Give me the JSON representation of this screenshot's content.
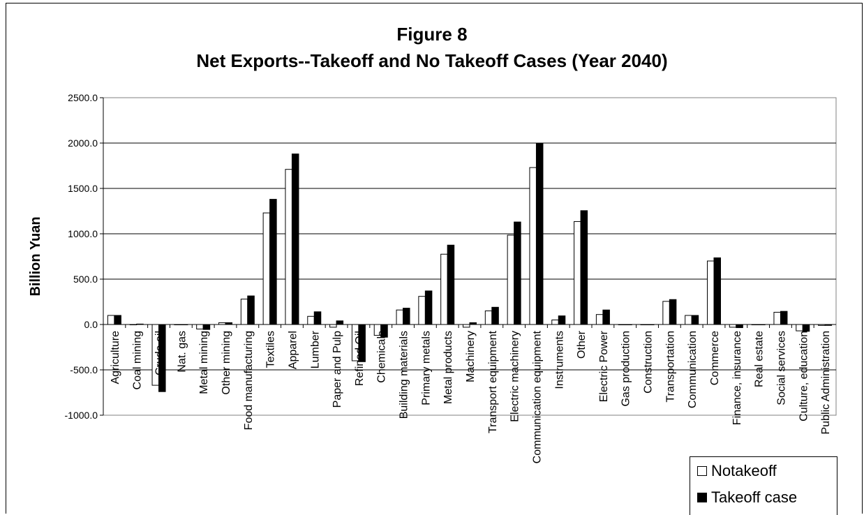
{
  "chart_data": {
    "type": "bar",
    "title": "Figure 8",
    "subtitle": "Net Exports--Takeoff and No Takeoff Cases (Year 2040)",
    "ylabel": "Billion Yuan",
    "xlabel": "",
    "ylim": [
      -1000,
      2500
    ],
    "yticks": [
      "2500.0",
      "2000.0",
      "1500.0",
      "1000.0",
      "500.0",
      "0.0",
      "-500.0",
      "-1000.0"
    ],
    "grid": true,
    "legend_position": "bottom-right",
    "categories": [
      "Agriculture",
      "Coal mining",
      "Crude oil",
      "Nat. gas",
      "Metal mining",
      "Other mining",
      "Food manufacturing",
      "Textiles",
      "Apparel",
      "Lumber",
      "Paper and Pulp",
      "Refined Oil",
      "Chemicals",
      "Building materials",
      "Primary metals",
      "Metal products",
      "Machinery",
      "Transport equipment",
      "Electric machinery",
      "Communication equipment",
      "Instruments",
      "Other",
      "Electric Power",
      "Gas production",
      "Construction",
      "Transportation",
      "Communication",
      "Commerce",
      "Finance, insurance",
      "Real estate",
      "Social services",
      "Culture, education",
      "Public Administration"
    ],
    "series": [
      {
        "name": "Notakeoff",
        "color": "#ffffff",
        "values": [
          100,
          0,
          -670,
          0,
          -50,
          20,
          280,
          1230,
          1710,
          90,
          -30,
          -400,
          -120,
          160,
          310,
          775,
          -30,
          150,
          985,
          1730,
          50,
          1135,
          110,
          0,
          0,
          255,
          100,
          700,
          -30,
          0,
          135,
          -70,
          -10
        ]
      },
      {
        "name": "Takeoff case",
        "color": "#000000",
        "values": [
          100,
          5,
          -740,
          0,
          -55,
          20,
          315,
          1380,
          1880,
          140,
          40,
          -410,
          -140,
          180,
          370,
          875,
          20,
          190,
          1130,
          2000,
          95,
          1255,
          160,
          0,
          0,
          275,
          100,
          735,
          -35,
          0,
          145,
          -75,
          -10
        ]
      }
    ]
  },
  "legend": {
    "notakeoff_label": "Notakeoff",
    "takeoff_label": "Takeoff case"
  }
}
